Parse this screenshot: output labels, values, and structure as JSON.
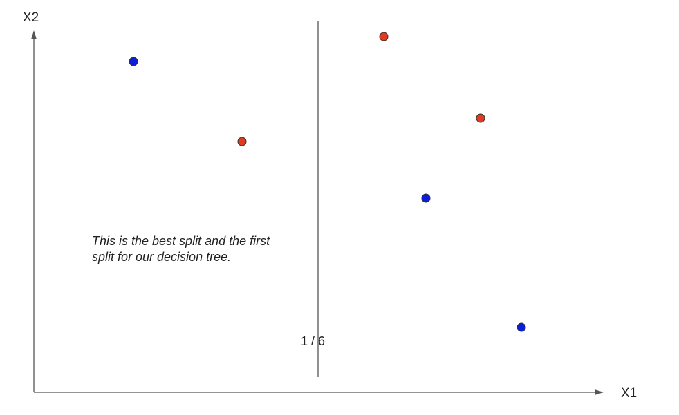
{
  "axes": {
    "x_label": "X1",
    "y_label": "X2"
  },
  "annotation": "This is the best split and the first split for our decision tree.",
  "split": {
    "fraction_label": "1 / 6"
  },
  "colors": {
    "axis": "#555555",
    "class_blue": "#0a1fd6",
    "class_red": "#e03a20",
    "marker_outline": "#333333"
  },
  "points": [
    {
      "class": "blue"
    },
    {
      "class": "blue"
    },
    {
      "class": "red"
    },
    {
      "class": "red"
    },
    {
      "class": "red"
    },
    {
      "class": "blue"
    }
  ]
}
